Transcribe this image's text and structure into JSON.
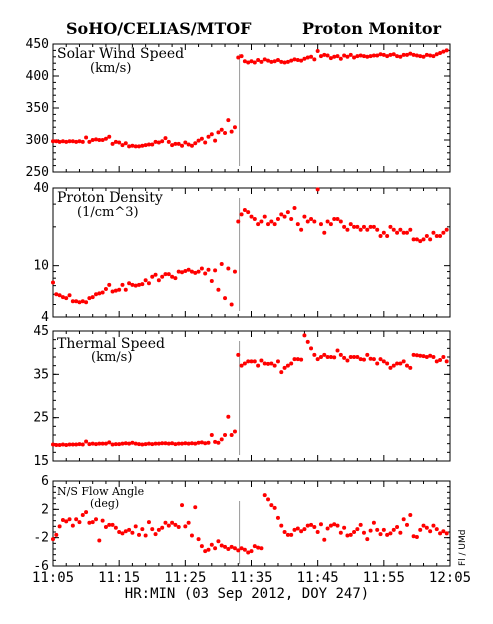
{
  "header": {
    "left_title": "SoHO/CELIAS/MTOF",
    "right_title": "Proton Monitor"
  },
  "side_note": "Fl / UMd",
  "chart_data": {
    "type": "scatter",
    "x_axis": {
      "label": "HR:MIN (03 Sep 2012, DOY 247)",
      "range": [
        0,
        60
      ],
      "tick_values": [
        0,
        10,
        20,
        30,
        40,
        50,
        60
      ],
      "tick_labels": [
        "11:05",
        "11:15",
        "11:25",
        "11:35",
        "11:45",
        "11:55",
        "12:05"
      ]
    },
    "marker_color": "#ff0000",
    "shock_marker_color": "#999999",
    "shock_time": 28.2,
    "panels": [
      {
        "key": "speed",
        "title": "Solar Wind Speed",
        "unit": "(km/s)",
        "ylim": [
          250,
          450
        ],
        "scale": "linear",
        "tick_values": [
          250,
          300,
          350,
          400,
          450
        ],
        "tick_labels": [
          "250",
          "300",
          "350",
          "400",
          "450"
        ],
        "x": [
          0,
          0.5,
          1,
          1.5,
          2,
          2.5,
          3,
          3.5,
          4,
          4.5,
          5,
          5.5,
          6,
          6.5,
          7,
          7.5,
          8,
          8.5,
          9,
          9.5,
          10,
          10.5,
          11,
          11.5,
          12,
          12.5,
          13,
          13.5,
          14,
          14.5,
          15,
          15.5,
          16,
          16.5,
          17,
          17.5,
          18,
          18.5,
          19,
          19.5,
          20,
          20.5,
          21,
          21.5,
          22,
          22.5,
          23,
          23.5,
          24,
          24.5,
          25,
          25.5,
          26,
          26.5,
          27,
          27.5,
          28,
          28.5,
          29,
          29.5,
          30,
          30.5,
          31,
          31.5,
          32,
          32.5,
          33,
          33.5,
          34,
          34.5,
          35,
          35.5,
          36,
          36.5,
          37,
          37.5,
          38,
          38.5,
          39,
          39.5,
          40,
          40.5,
          41,
          41.5,
          42,
          42.5,
          43,
          43.5,
          44,
          44.5,
          45,
          45.5,
          46,
          46.5,
          47,
          47.5,
          48,
          48.5,
          49,
          49.5,
          50,
          50.5,
          51,
          51.5,
          52,
          52.5,
          53,
          53.5,
          54,
          54.5,
          55,
          55.5,
          56,
          56.5,
          57,
          57.5,
          58,
          58.5,
          59,
          59.5
        ],
        "y": [
          298,
          298,
          297,
          298,
          297,
          298,
          298,
          297,
          298,
          297,
          304,
          297,
          300,
          301,
          300,
          300,
          302,
          305,
          294,
          297,
          296,
          292,
          295,
          290,
          291,
          290,
          290,
          291,
          292,
          293,
          293,
          297,
          296,
          298,
          303,
          297,
          292,
          294,
          294,
          291,
          296,
          293,
          291,
          295,
          299,
          302,
          296,
          305,
          309,
          299,
          312,
          316,
          311,
          331,
          313,
          320,
          429,
          431,
          423,
          421,
          423,
          421,
          425,
          422,
          426,
          424,
          422,
          423,
          425,
          422,
          421,
          422,
          424,
          426,
          425,
          424,
          427,
          429,
          430,
          426,
          439,
          431,
          433,
          432,
          428,
          430,
          431,
          427,
          432,
          430,
          433,
          429,
          431,
          432,
          431,
          430,
          431,
          432,
          432,
          434,
          433,
          431,
          433,
          434,
          431,
          430,
          433,
          433,
          435,
          433,
          432,
          431,
          430,
          433,
          432,
          431,
          434,
          436,
          438,
          440
        ]
      },
      {
        "key": "density",
        "title": "Proton Density",
        "unit": "(1/cm^3)",
        "ylim": [
          4,
          40
        ],
        "scale": "log",
        "tick_values": [
          4,
          10,
          40
        ],
        "tick_labels": [
          "4",
          "10",
          "40"
        ],
        "x": [
          0,
          0.5,
          1,
          1.5,
          2,
          2.5,
          3,
          3.5,
          4,
          4.5,
          5,
          5.5,
          6,
          6.5,
          7,
          7.5,
          8,
          8.5,
          9,
          9.5,
          10,
          10.5,
          11,
          11.5,
          12,
          12.5,
          13,
          13.5,
          14,
          14.5,
          15,
          15.5,
          16,
          16.5,
          17,
          17.5,
          18,
          18.5,
          19,
          19.5,
          20,
          20.5,
          21,
          21.5,
          22,
          22.5,
          23,
          23.5,
          24,
          24.5,
          25,
          25.5,
          26,
          26.5,
          27,
          27.5,
          28,
          28.5,
          29,
          29.5,
          30,
          30.5,
          31,
          31.5,
          32,
          32.5,
          33,
          33.5,
          34,
          34.5,
          35,
          35.5,
          36,
          36.5,
          37,
          37.5,
          38,
          38.5,
          39,
          39.5,
          40,
          40.5,
          41,
          41.5,
          42,
          42.5,
          43,
          43.5,
          44,
          44.5,
          45,
          45.5,
          46,
          46.5,
          47,
          47.5,
          48,
          48.5,
          49,
          49.5,
          50,
          50.5,
          51,
          51.5,
          52,
          52.5,
          53,
          53.5,
          54,
          54.5,
          55,
          55.5,
          56,
          56.5,
          57,
          57.5,
          58,
          58.5,
          59,
          59.5
        ],
        "y": [
          7.4,
          6,
          5.9,
          5.7,
          5.6,
          5.9,
          5.3,
          5.3,
          5.2,
          5.3,
          5.2,
          5.6,
          5.7,
          6,
          6.1,
          6.2,
          6.6,
          7.1,
          6.3,
          6.4,
          6.5,
          7.1,
          6.5,
          7.3,
          7.1,
          7,
          7.1,
          7.2,
          7.7,
          7.3,
          8.2,
          8.5,
          7.7,
          8.2,
          8.6,
          8.6,
          8.2,
          8,
          9,
          8.9,
          9.1,
          9.3,
          9,
          8.8,
          9,
          9.5,
          8.7,
          9.3,
          7.6,
          9.2,
          6.5,
          10.3,
          5.6,
          9.5,
          5,
          9,
          22,
          25,
          27,
          26,
          24,
          23,
          21,
          22,
          24,
          21,
          22,
          21,
          23,
          25,
          24,
          26,
          23,
          28,
          21,
          19,
          24,
          22,
          23,
          22,
          39,
          21,
          18,
          22,
          21,
          23,
          23,
          22,
          20,
          19,
          21,
          20,
          20,
          19,
          20,
          19,
          20,
          20,
          19,
          17,
          18,
          17,
          20,
          19,
          18,
          19,
          18,
          18,
          19,
          16,
          16,
          15.5,
          16,
          17,
          16,
          18,
          17,
          17,
          18,
          19
        ]
      },
      {
        "key": "thermal",
        "title": "Thermal Speed",
        "unit": "(km/s)",
        "ylim": [
          15,
          45
        ],
        "scale": "linear",
        "tick_values": [
          15,
          25,
          35,
          45
        ],
        "tick_labels": [
          "15",
          "25",
          "35",
          "45"
        ],
        "x": [
          0,
          0.5,
          1,
          1.5,
          2,
          2.5,
          3,
          3.5,
          4,
          4.5,
          5,
          5.5,
          6,
          6.5,
          7,
          7.5,
          8,
          8.5,
          9,
          9.5,
          10,
          10.5,
          11,
          11.5,
          12,
          12.5,
          13,
          13.5,
          14,
          14.5,
          15,
          15.5,
          16,
          16.5,
          17,
          17.5,
          18,
          18.5,
          19,
          19.5,
          20,
          20.5,
          21,
          21.5,
          22,
          22.5,
          23,
          23.5,
          24,
          24.5,
          25,
          25.5,
          26,
          26.5,
          27,
          27.5,
          28,
          28.5,
          29,
          29.5,
          30,
          30.5,
          31,
          31.5,
          32,
          32.5,
          33,
          33.5,
          34,
          34.5,
          35,
          35.5,
          36,
          36.5,
          37,
          37.5,
          38,
          38.5,
          39,
          39.5,
          40,
          40.5,
          41,
          41.5,
          42,
          42.5,
          43,
          43.5,
          44,
          44.5,
          45,
          45.5,
          46,
          46.5,
          47,
          47.5,
          48,
          48.5,
          49,
          49.5,
          50,
          50.5,
          51,
          51.5,
          52,
          52.5,
          53,
          53.5,
          54,
          54.5,
          55,
          55.5,
          56,
          56.5,
          57,
          57.5,
          58,
          58.5,
          59,
          59.5
        ],
        "y": [
          18.8,
          18.7,
          18.7,
          18.8,
          18.7,
          18.8,
          18.8,
          18.8,
          18.9,
          18.8,
          19.5,
          18.9,
          19,
          18.9,
          19,
          19,
          19,
          19.3,
          18.8,
          18.9,
          18.9,
          19,
          19.1,
          19,
          19.2,
          19,
          18.9,
          18.8,
          18.9,
          19,
          18.9,
          19,
          19,
          19.1,
          19.1,
          19,
          19.1,
          18.9,
          19,
          19,
          19.1,
          19,
          19.1,
          19,
          19.2,
          19.3,
          19.1,
          19.2,
          21,
          19.4,
          19.2,
          20,
          21,
          25.2,
          21,
          21.8,
          39.5,
          37,
          37.5,
          38,
          38,
          38,
          37,
          38.2,
          37.5,
          37.4,
          37.5,
          37,
          38,
          35.5,
          36.5,
          37,
          37.5,
          38.5,
          38.5,
          38.4,
          44,
          42.5,
          41,
          39.5,
          38.5,
          39,
          39.5,
          39,
          39,
          38.9,
          40.5,
          39.5,
          38.8,
          38.2,
          39,
          39,
          39,
          38.5,
          38.4,
          39.5,
          38.6,
          38.5,
          37.5,
          38.5,
          38,
          37.5,
          36.5,
          37,
          37.5,
          37.5,
          38,
          37,
          36.5,
          39.5,
          39.4,
          39.3,
          39.2,
          39,
          39.3,
          39,
          38,
          38.3,
          39,
          38
        ]
      },
      {
        "key": "angle",
        "title": "N/S Flow Angle",
        "unit": "(deg)",
        "ylim": [
          -6,
          6
        ],
        "scale": "linear",
        "tick_values": [
          -6,
          -2,
          2,
          6
        ],
        "tick_labels": [
          "-6",
          "-2",
          "2",
          "6"
        ],
        "x": [
          0,
          0.5,
          1,
          1.5,
          2,
          2.5,
          3,
          3.5,
          4,
          4.5,
          5,
          5.5,
          6,
          6.5,
          7,
          7.5,
          8,
          8.5,
          9,
          9.5,
          10,
          10.5,
          11,
          11.5,
          12,
          12.5,
          13,
          13.5,
          14,
          14.5,
          15,
          15.5,
          16,
          16.5,
          17,
          17.5,
          18,
          18.5,
          19,
          19.5,
          20,
          20.5,
          21,
          21.5,
          22,
          22.5,
          23,
          23.5,
          24,
          24.5,
          25,
          25.5,
          26,
          26.5,
          27,
          27.5,
          28,
          28.5,
          29,
          29.5,
          30,
          30.5,
          31,
          31.5,
          32,
          32.5,
          33,
          33.5,
          34,
          34.5,
          35,
          35.5,
          36,
          36.5,
          37,
          37.5,
          38,
          38.5,
          39,
          39.5,
          40,
          40.5,
          41,
          41.5,
          42,
          42.5,
          43,
          43.5,
          44,
          44.5,
          45,
          45.5,
          46,
          46.5,
          47,
          47.5,
          48,
          48.5,
          49,
          49.5,
          50,
          50.5,
          51,
          51.5,
          52,
          52.5,
          53,
          53.5,
          54,
          54.5,
          55,
          55.5,
          56,
          56.5,
          57,
          57.5,
          58,
          58.5,
          59,
          59.5
        ],
        "y": [
          -2.2,
          -1.6,
          -0.4,
          0.5,
          0.3,
          0.6,
          -0.3,
          0.6,
          0.2,
          1.2,
          1.6,
          0.1,
          0.2,
          0.6,
          -2.4,
          0.4,
          -0.5,
          -0.2,
          -0.2,
          -0.6,
          -1.2,
          -1.4,
          -1.1,
          -0.9,
          -1.3,
          -0.4,
          -1.6,
          -0.8,
          -1.7,
          0.2,
          -0.8,
          -1.5,
          -0.9,
          -0.6,
          0.1,
          -0.3,
          0.1,
          -0.2,
          -0.5,
          2.6,
          -0.4,
          0.1,
          -1.7,
          2.3,
          -2.2,
          -3.2,
          -3.9,
          -3.7,
          -3.0,
          -3.5,
          -2.5,
          -3.1,
          -3.3,
          -3.6,
          -3.3,
          -3.5,
          -3.8,
          -3.5,
          -3.7,
          -4.1,
          -3.9,
          -3.2,
          -3.4,
          -3.5,
          4.0,
          3.4,
          2.6,
          2.2,
          0.8,
          -0.3,
          -1.2,
          -1.6,
          -1.6,
          -0.9,
          -0.7,
          -1.1,
          -0.8,
          -0.3,
          -0.2,
          -0.5,
          -1.2,
          -0.1,
          -2.3,
          -0.7,
          -0.3,
          -0.1,
          -0.3,
          -1.3,
          -0.6,
          -1.7,
          -1.6,
          -1.2,
          -0.8,
          -0.2,
          -1.3,
          -2.2,
          -1.0,
          0.1,
          -0.9,
          -1.5,
          -0.9,
          -1.6,
          -1.4,
          -0.9,
          -0.5,
          -1.3,
          0.6,
          -0.2,
          1.2,
          -1.8,
          -1.9,
          -0.9,
          -0.3,
          -0.6,
          -1.1,
          -0.3,
          -0.8,
          -1.4,
          -1.1,
          -1.4
        ]
      }
    ]
  }
}
